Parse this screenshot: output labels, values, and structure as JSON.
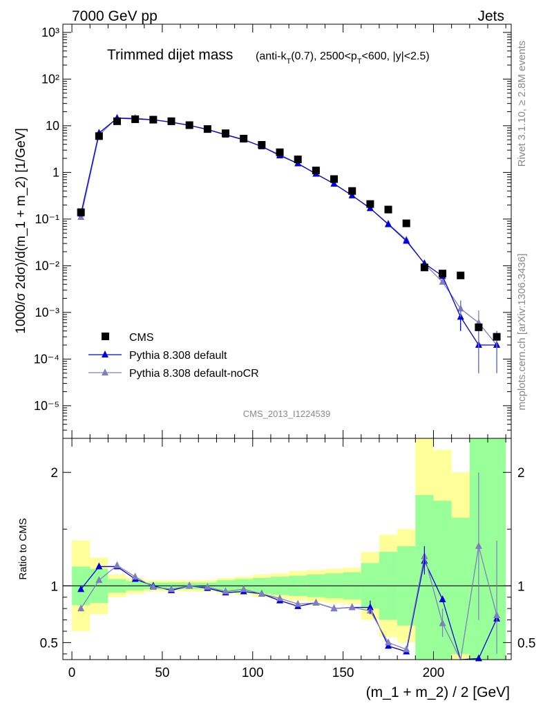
{
  "header": {
    "left": "7000 GeV pp",
    "right": "Jets"
  },
  "side_labels": {
    "rivet": "Rivet 3.1.10, ≥ 2.8M events",
    "source": "mcplots.cern.ch [arXiv:1306.3436]"
  },
  "watermark": "CMS_2013_I1224539",
  "colors": {
    "cms": "#000000",
    "default": "#0000dd",
    "nocr": "#7f7fbf",
    "band_inner": "#99ff99",
    "band_outer": "#ffff99"
  },
  "chart_data": [
    {
      "type": "line",
      "title": "Trimmed dijet mass",
      "title_suffix": {
        "pre": "(anti-k",
        "sub1": "T",
        "mid": "(0.7), 2500<p",
        "sub2": "T",
        "post": "<600, |y|<2.5)"
      },
      "ylabel": "1000/σ 2dσ)/d(m_1 + m_2) [1/GeV]",
      "yscale": "log",
      "ylim": [
        2e-06,
        1500
      ],
      "xlim": [
        -5,
        243
      ],
      "y_tick_labels": [
        "10⁻⁵",
        "10⁻⁴",
        "10⁻³",
        "10⁻²",
        "10⁻¹",
        "1",
        "10",
        "10²",
        "10³"
      ],
      "y_tick_values": [
        1e-05,
        0.0001,
        0.001,
        0.01,
        0.1,
        1,
        10,
        100,
        1000
      ],
      "legend": [
        "CMS",
        "Pythia 8.308 default",
        "Pythia 8.308 default-noCR"
      ],
      "legend_position": "lower-left",
      "x": [
        5,
        15,
        25,
        35,
        45,
        55,
        65,
        75,
        85,
        95,
        105,
        115,
        125,
        135,
        145,
        155,
        165,
        175,
        185,
        195,
        205,
        215,
        225,
        235
      ],
      "series": [
        {
          "name": "CMS",
          "style": "markers",
          "values": [
            0.14,
            6.0,
            12.5,
            13.8,
            13.5,
            12.5,
            10.3,
            8.5,
            6.9,
            5.3,
            3.9,
            2.7,
            1.9,
            1.1,
            0.72,
            0.4,
            0.21,
            0.16,
            0.081,
            0.0092,
            0.0068,
            0.0062,
            0.00048,
            0.0003
          ]
        },
        {
          "name": "Pythia 8.308 default",
          "style": "line",
          "values": [
            0.13,
            7.0,
            14.5,
            14.0,
            13.4,
            11.9,
            10.2,
            8.3,
            6.4,
            5.0,
            3.6,
            2.3,
            1.55,
            0.93,
            0.57,
            0.32,
            0.17,
            0.077,
            0.034,
            0.0112,
            0.006,
            0.0008,
            0.0002,
            0.0002
          ]
        },
        {
          "name": "Pythia 8.308 default-noCR",
          "style": "line",
          "values": [
            0.11,
            6.3,
            14.7,
            14.6,
            13.4,
            12.0,
            10.2,
            8.4,
            6.5,
            5.1,
            3.6,
            2.4,
            1.55,
            0.93,
            0.57,
            0.32,
            0.17,
            0.079,
            0.036,
            0.011,
            0.0045,
            0.0012,
            0.0006,
            0.0002
          ]
        }
      ]
    },
    {
      "type": "line",
      "ylabel": "Ratio to CMS",
      "xlabel": "(m_1 + m_2) / 2 [GeV]",
      "ylim": [
        0.35,
        2.3
      ],
      "xlim": [
        -5,
        243
      ],
      "x_tick_labels": [
        "0",
        "50",
        "100",
        "150",
        "200"
      ],
      "x_tick_values": [
        0,
        50,
        100,
        150,
        200
      ],
      "y_tick_labels": [
        "0.5",
        "1",
        "2"
      ],
      "y_tick_values": [
        0.5,
        1,
        2
      ],
      "x_edges": [
        0,
        10,
        20,
        30,
        40,
        50,
        60,
        70,
        80,
        90,
        100,
        110,
        120,
        130,
        140,
        150,
        160,
        170,
        180,
        190,
        200,
        210,
        220,
        230,
        240
      ],
      "band_inner_halfwidth": [
        0.17,
        0.15,
        0.06,
        0.04,
        0.03,
        0.03,
        0.03,
        0.03,
        0.05,
        0.06,
        0.07,
        0.08,
        0.09,
        0.1,
        0.11,
        0.12,
        0.2,
        0.3,
        0.35,
        0.8,
        0.75,
        0.6,
        2.0,
        2.0
      ],
      "band_outer_halfwidth": [
        0.4,
        0.25,
        0.1,
        0.07,
        0.05,
        0.05,
        0.05,
        0.05,
        0.07,
        0.08,
        0.1,
        0.11,
        0.13,
        0.14,
        0.15,
        0.16,
        0.3,
        0.45,
        0.5,
        1.3,
        1.2,
        1.0,
        2.0,
        2.0
      ],
      "series": [
        {
          "name": "Pythia 8.308 default",
          "values": [
            0.97,
            1.17,
            1.17,
            1.06,
            1.0,
            0.96,
            1.0,
            0.98,
            0.94,
            0.95,
            0.93,
            0.87,
            0.82,
            0.85,
            0.8,
            0.81,
            0.81,
            0.47,
            0.42,
            1.22,
            0.88,
            0.15,
            0.36,
            0.71
          ]
        },
        {
          "name": "Pythia 8.308 default-noCR",
          "values": [
            0.8,
            1.05,
            1.18,
            1.08,
            0.99,
            0.97,
            1.0,
            0.99,
            0.95,
            0.97,
            0.93,
            0.89,
            0.84,
            0.85,
            0.8,
            0.81,
            0.78,
            0.5,
            0.44,
            1.26,
            0.67,
            0.2,
            1.35,
            0.74
          ]
        }
      ]
    }
  ]
}
